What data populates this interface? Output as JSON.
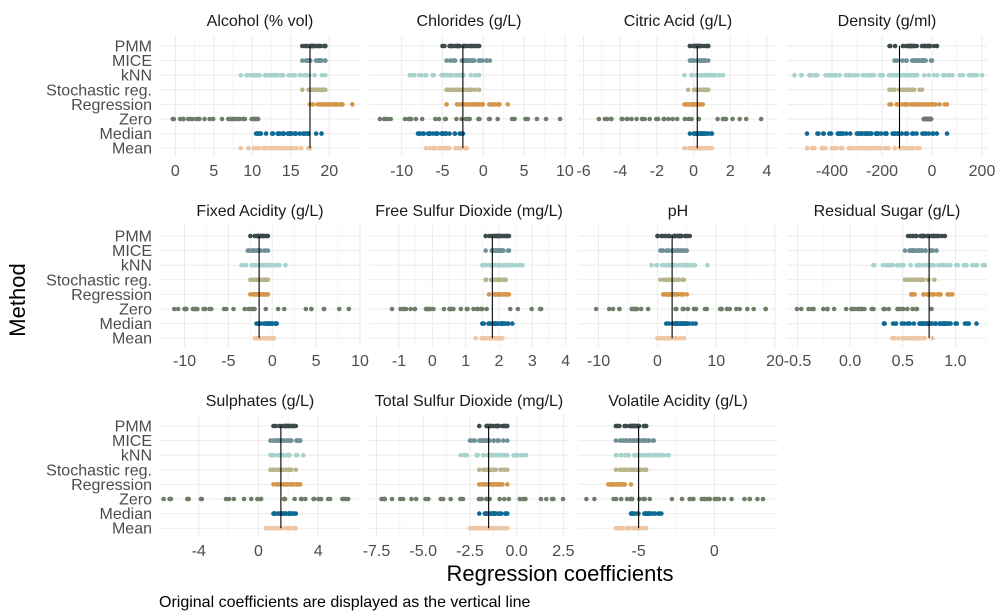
{
  "figure": {
    "xlabel": "Regression coefficients",
    "ylabel": "Method",
    "caption": "Original coefficients are displayed as the vertical line"
  },
  "methods": [
    "PMM",
    "MICE",
    "kNN",
    "Stochastic reg.",
    "Regression",
    "Zero",
    "Median",
    "Mean"
  ],
  "method_colors": {
    "PMM": "#3d4a4c",
    "MICE": "#6e9096",
    "kNN": "#a8d3cd",
    "Stochastic reg.": "#b8b48c",
    "Regression": "#d4964a",
    "Zero": "#6e7d68",
    "Median": "#0e6a94",
    "Mean": "#eec6a4"
  },
  "chart_data": [
    {
      "type": "scatter",
      "title": "Alcohol (% vol)",
      "xlim": [
        -2,
        24
      ],
      "ticks": [
        0,
        5,
        10,
        15,
        20
      ],
      "tick_labels": [
        "0",
        "5",
        "10",
        "15",
        "20"
      ],
      "original": 17.5,
      "ranges": {
        "PMM": [
          16.5,
          19.5
        ],
        "MICE": [
          16.5,
          19.5
        ],
        "kNN": [
          8.5,
          19.5
        ],
        "Stochastic reg.": [
          16.5,
          19.5
        ],
        "Regression": [
          17.5,
          23
        ],
        "Zero": [
          -0.5,
          11
        ],
        "Median": [
          10.5,
          19
        ],
        "Mean": [
          8.5,
          17.5
        ]
      }
    },
    {
      "type": "scatter",
      "title": "Chlorides (g/L)",
      "xlim": [
        -14,
        10.5
      ],
      "ticks": [
        -10,
        -5,
        0,
        5,
        10
      ],
      "tick_labels": [
        "-10",
        "-5",
        "0",
        "5",
        "10"
      ],
      "original": -2.5,
      "ranges": {
        "PMM": [
          -5,
          -0.5
        ],
        "MICE": [
          -4.5,
          0.8
        ],
        "kNN": [
          -9,
          -0.5
        ],
        "Stochastic reg.": [
          -4.5,
          -0.5
        ],
        "Regression": [
          -4.5,
          3
        ],
        "Zero": [
          -13,
          9.5
        ],
        "Median": [
          -8,
          -2.5
        ],
        "Mean": [
          -7,
          -2
        ]
      }
    },
    {
      "type": "scatter",
      "title": "Citric Acid (g/L)",
      "xlim": [
        -6.3,
        4.6
      ],
      "ticks": [
        -6,
        -4,
        -2,
        0,
        2,
        4
      ],
      "tick_labels": [
        "-6",
        "-4",
        "-2",
        "0",
        "2",
        "4"
      ],
      "original": 0.2,
      "ranges": {
        "PMM": [
          -0.2,
          0.8
        ],
        "MICE": [
          -0.2,
          0.8
        ],
        "kNN": [
          -0.5,
          1.6
        ],
        "Stochastic reg.": [
          -0.3,
          0.8
        ],
        "Regression": [
          -0.5,
          0.5
        ],
        "Zero": [
          -5.5,
          4
        ],
        "Median": [
          -0.2,
          1
        ],
        "Mean": [
          -0.5,
          1
        ]
      }
    },
    {
      "type": "scatter",
      "title": "Density (g/ml)",
      "xlim": [
        -580,
        220
      ],
      "ticks": [
        -400,
        -200,
        0,
        200
      ],
      "tick_labels": [
        "-400",
        "-200",
        "0",
        "200"
      ],
      "original": -130,
      "ranges": {
        "PMM": [
          -170,
          20
        ],
        "MICE": [
          -150,
          0
        ],
        "kNN": [
          -550,
          200
        ],
        "Stochastic reg.": [
          -170,
          -40
        ],
        "Regression": [
          -170,
          60
        ],
        "Zero": [
          -40,
          0
        ],
        "Median": [
          -500,
          60
        ],
        "Mean": [
          -500,
          -50
        ]
      }
    },
    {
      "type": "scatter",
      "title": "Fixed Acidity (g/L)",
      "xlim": [
        -12.8,
        10
      ],
      "ticks": [
        -10,
        -5,
        0,
        5,
        10
      ],
      "tick_labels": [
        "-10",
        "-5",
        "0",
        "5",
        "10"
      ],
      "original": -1.5,
      "ranges": {
        "PMM": [
          -2.5,
          -0.5
        ],
        "MICE": [
          -2.8,
          -0.5
        ],
        "kNN": [
          -3.5,
          1.5
        ],
        "Stochastic reg.": [
          -2.5,
          -0.5
        ],
        "Regression": [
          -2.5,
          -0.5
        ],
        "Zero": [
          -12,
          9
        ],
        "Median": [
          -1.8,
          0.5
        ],
        "Mean": [
          -2,
          0.2
        ]
      }
    },
    {
      "type": "scatter",
      "title": "Free Sulfur Dioxide (mg/L)",
      "xlim": [
        -1.9,
        4.1
      ],
      "ticks": [
        -1,
        0,
        1,
        2,
        3,
        4
      ],
      "tick_labels": [
        "-1",
        "0",
        "1",
        "2",
        "3",
        "4"
      ],
      "original": 1.8,
      "ranges": {
        "PMM": [
          1.6,
          2.3
        ],
        "MICE": [
          1.6,
          2.3
        ],
        "kNN": [
          1.5,
          2.7
        ],
        "Stochastic reg.": [
          1.6,
          2.2
        ],
        "Regression": [
          1.7,
          2.3
        ],
        "Zero": [
          -1.7,
          3.8
        ],
        "Median": [
          1.5,
          2.4
        ],
        "Mean": [
          1.3,
          2.1
        ]
      }
    },
    {
      "type": "scatter",
      "title": "pH",
      "xlim": [
        -13.5,
        20.5
      ],
      "ticks": [
        -10,
        0,
        10,
        20
      ],
      "tick_labels": [
        "-10",
        "0",
        "10",
        "20"
      ],
      "original": 2.5,
      "ranges": {
        "PMM": [
          0,
          5.5
        ],
        "MICE": [
          0.5,
          5
        ],
        "kNN": [
          -1,
          8.5
        ],
        "Stochastic reg.": [
          0.5,
          4.5
        ],
        "Regression": [
          1,
          5
        ],
        "Zero": [
          -13,
          19
        ],
        "Median": [
          1.5,
          6.5
        ],
        "Mean": [
          0,
          4.5
        ]
      }
    },
    {
      "type": "scatter",
      "title": "Residual Sugar (g/L)",
      "xlim": [
        -0.6,
        1.3
      ],
      "ticks": [
        -0.5,
        0,
        0.5,
        1
      ],
      "tick_labels": [
        "-0.5",
        "0.0",
        "0.5",
        "1.0"
      ],
      "original": 0.75,
      "ranges": {
        "PMM": [
          0.55,
          0.9
        ],
        "MICE": [
          0.52,
          0.82
        ],
        "kNN": [
          0.22,
          1.28
        ],
        "Stochastic reg.": [
          0.52,
          0.8
        ],
        "Regression": [
          0.58,
          0.97
        ],
        "Zero": [
          -0.55,
          0.8
        ],
        "Median": [
          0.32,
          1.2
        ],
        "Mean": [
          0.4,
          0.78
        ]
      }
    },
    {
      "type": "scatter",
      "title": "Sulphates (g/L)",
      "xlim": [
        -6.6,
        6.8
      ],
      "ticks": [
        -4,
        0,
        4
      ],
      "tick_labels": [
        "-4",
        "0",
        "4"
      ],
      "original": 1.5,
      "ranges": {
        "PMM": [
          1,
          2.5
        ],
        "MICE": [
          0.8,
          2.8
        ],
        "kNN": [
          0.8,
          3
        ],
        "Stochastic reg.": [
          0.8,
          2.5
        ],
        "Regression": [
          1,
          2.8
        ],
        "Zero": [
          -6.5,
          6.5
        ],
        "Median": [
          1,
          2.5
        ],
        "Mean": [
          0.5,
          2.5
        ]
      }
    },
    {
      "type": "scatter",
      "title": "Total Sulfur Dioxide (mg/L)",
      "xlim": [
        -7.9,
        2.8
      ],
      "ticks": [
        -7.5,
        -5,
        -2.5,
        0,
        2.5
      ],
      "tick_labels": [
        "-7.5",
        "-5.0",
        "-2.5",
        "0.0",
        "2.5"
      ],
      "original": -1.5,
      "ranges": {
        "PMM": [
          -2,
          -0.5
        ],
        "MICE": [
          -2.5,
          -0.5
        ],
        "kNN": [
          -3,
          0.5
        ],
        "Stochastic reg.": [
          -2,
          -0.5
        ],
        "Regression": [
          -2,
          -0.5
        ],
        "Zero": [
          -7.5,
          2.5
        ],
        "Median": [
          -2,
          -0.5
        ],
        "Mean": [
          -2.5,
          -0.5
        ]
      }
    },
    {
      "type": "scatter",
      "title": "Volatile Acidity (g/L)",
      "xlim": [
        -9,
        4.2
      ],
      "ticks": [
        -5,
        0
      ],
      "tick_labels": [
        "-5",
        "0"
      ],
      "original": -5,
      "ranges": {
        "PMM": [
          -6.5,
          -4.5
        ],
        "MICE": [
          -6.5,
          -4
        ],
        "kNN": [
          -6.5,
          -3
        ],
        "Stochastic reg.": [
          -6.5,
          -4.5
        ],
        "Regression": [
          -7,
          -5.5
        ],
        "Zero": [
          -8.5,
          3.5
        ],
        "Median": [
          -5.5,
          -3.5
        ],
        "Mean": [
          -6.5,
          -4.5
        ]
      }
    }
  ]
}
